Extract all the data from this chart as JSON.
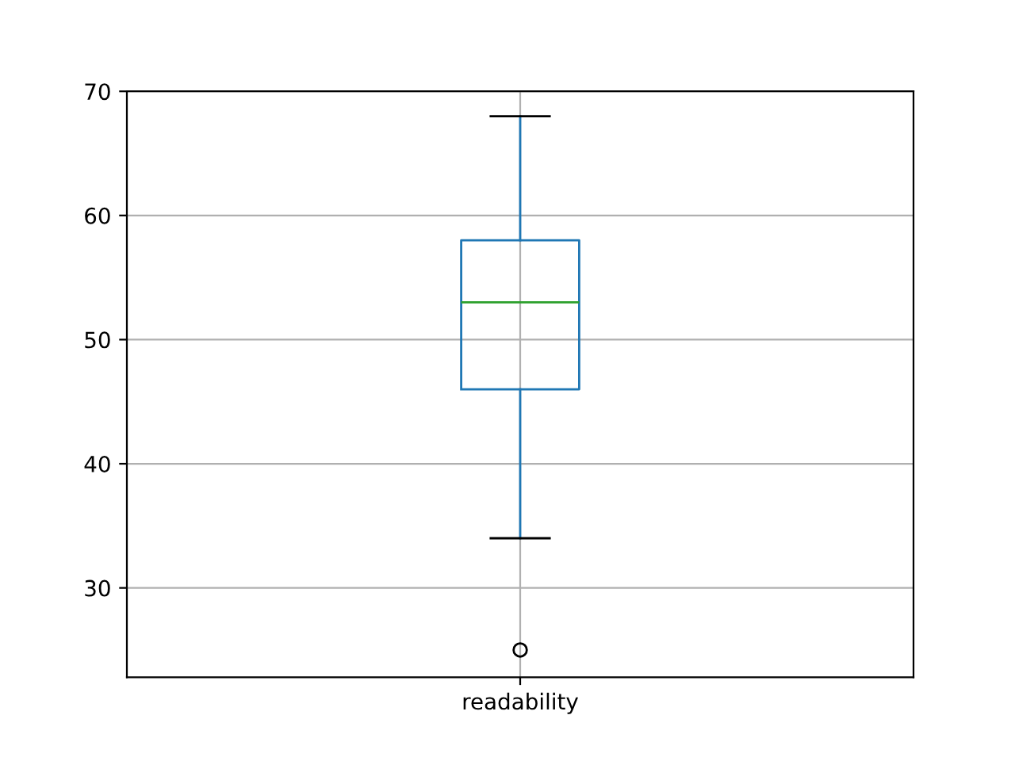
{
  "chart_data": {
    "type": "box",
    "categories": [
      "readability"
    ],
    "boxes": [
      {
        "low": 34,
        "q1": 46,
        "median": 53,
        "q3": 58,
        "high": 68,
        "outliers": [
          25
        ]
      }
    ],
    "color": "#1f77b4",
    "ylim": [
      22.8,
      70
    ],
    "yticks": [
      30,
      40,
      50,
      60,
      70
    ],
    "grid": true
  }
}
